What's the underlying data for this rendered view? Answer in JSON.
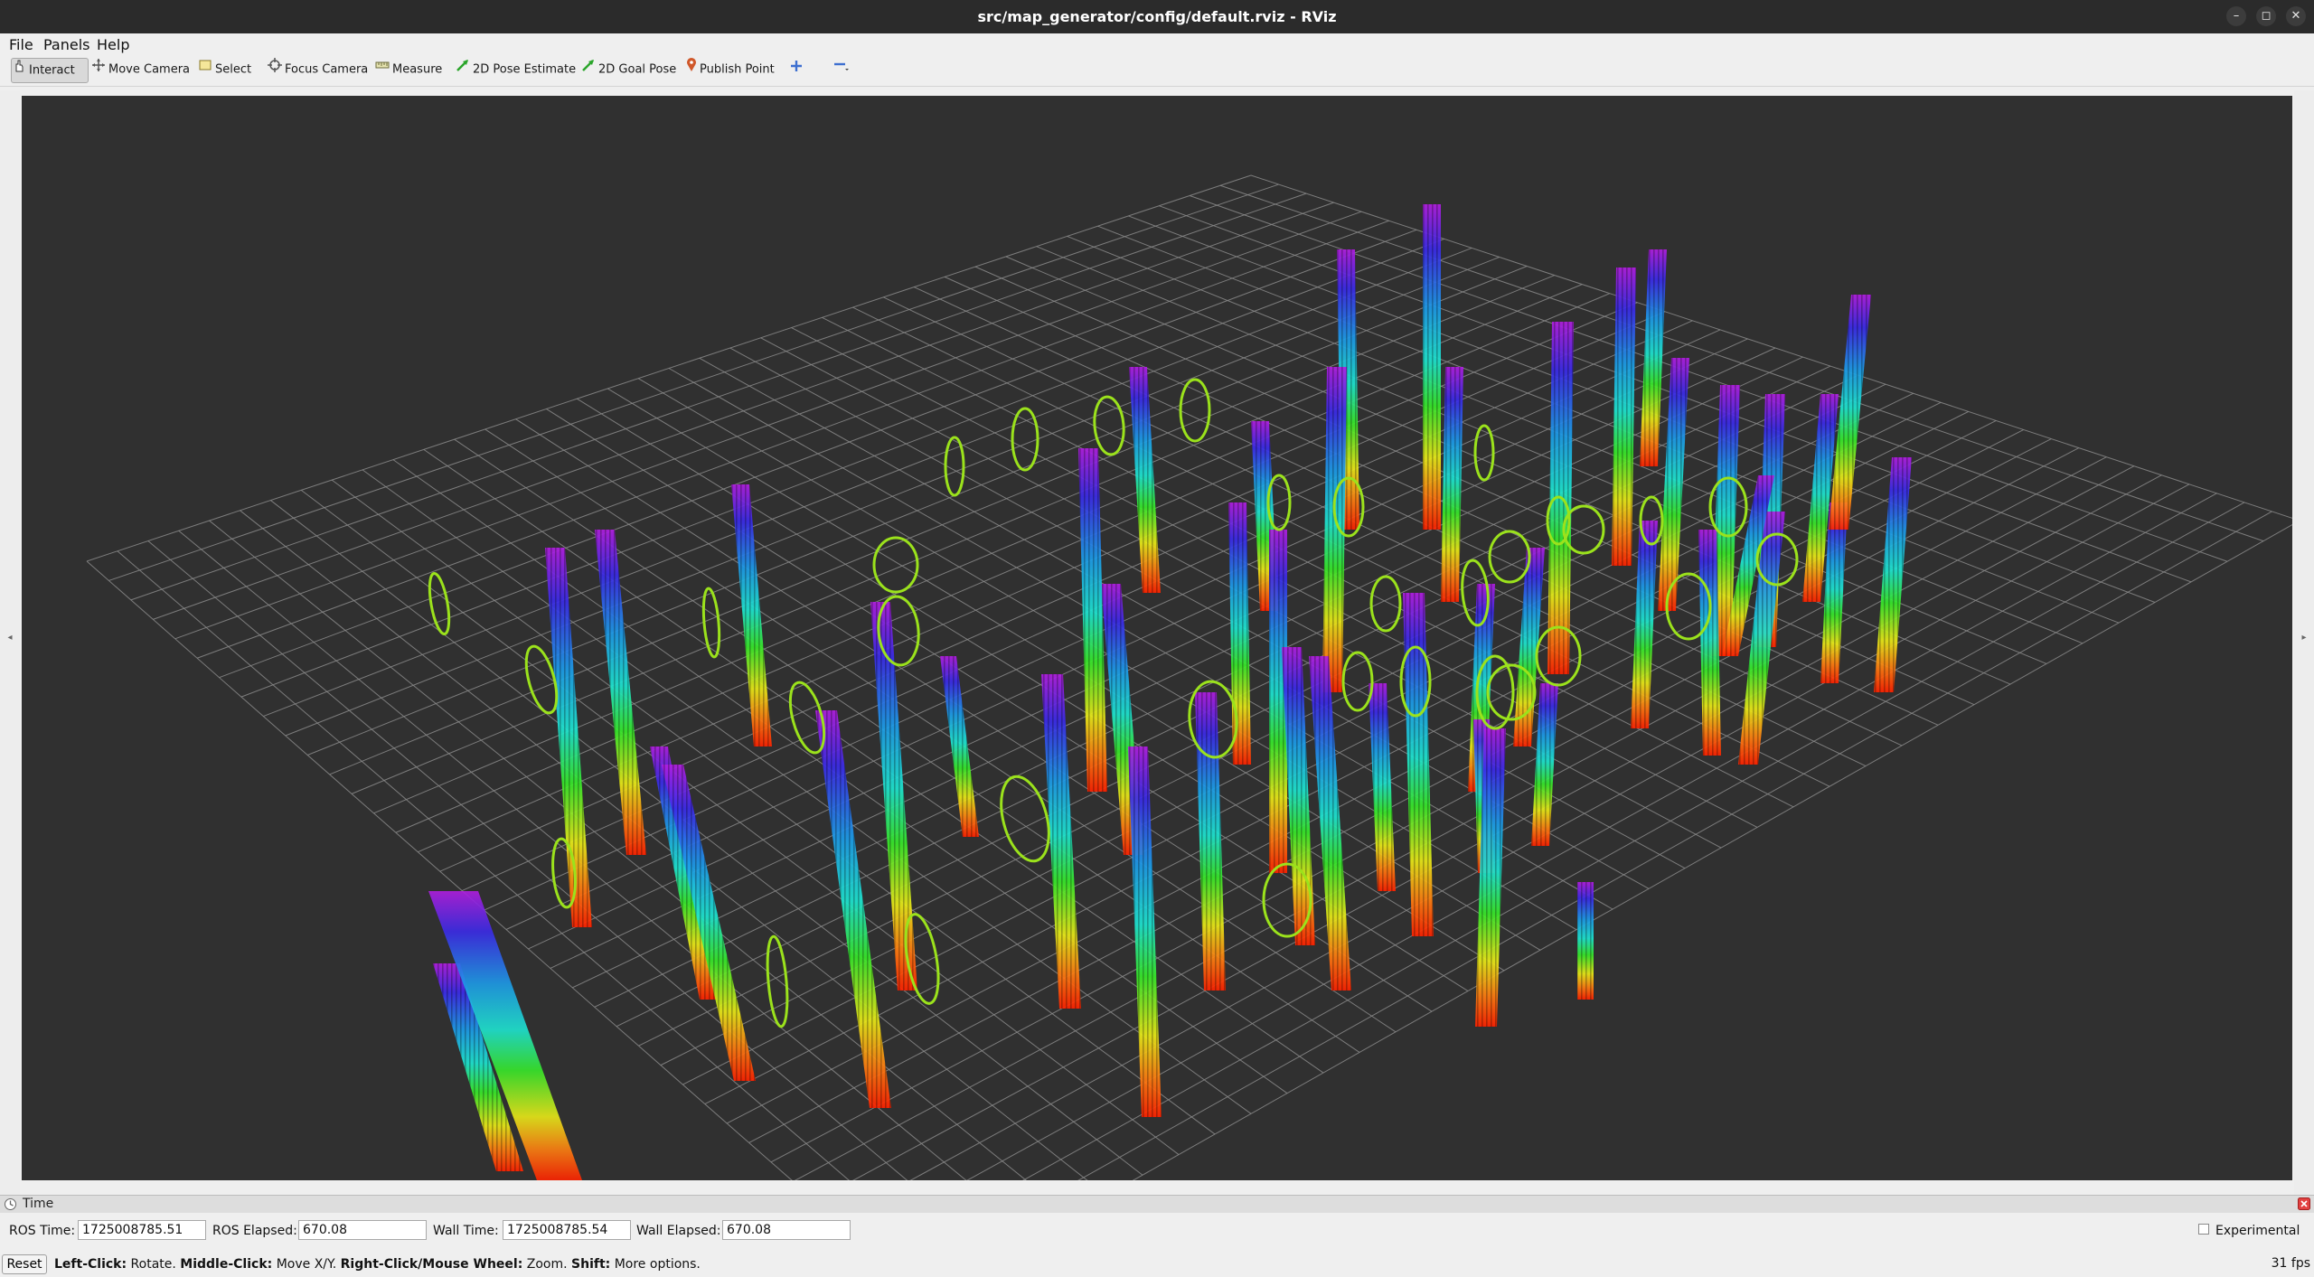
{
  "window": {
    "title": "src/map_generator/config/default.rviz - RViz",
    "minimize_glyph": "–",
    "maximize_glyph": "◻",
    "close_glyph": "✕"
  },
  "menu": {
    "items": [
      {
        "label": "File",
        "hotkey": "F"
      },
      {
        "label": "Panels",
        "hotkey": "P"
      },
      {
        "label": "Help",
        "hotkey": "H"
      }
    ]
  },
  "toolbar": {
    "tools": [
      {
        "label": "Interact",
        "icon": "hand-cursor-icon",
        "active": true
      },
      {
        "label": "Move Camera",
        "icon": "move-camera-icon"
      },
      {
        "label": "Select",
        "icon": "select-box-icon"
      },
      {
        "label": "Focus Camera",
        "icon": "focus-camera-icon"
      },
      {
        "label": "Measure",
        "icon": "ruler-icon"
      },
      {
        "label": "2D Pose Estimate",
        "icon": "green-arrow-icon"
      },
      {
        "label": "2D Goal Pose",
        "icon": "green-arrow-icon"
      },
      {
        "label": "Publish Point",
        "icon": "map-pin-icon"
      }
    ],
    "add_tool_icon": "plus-icon",
    "remove_tool_icon": "minus-icon"
  },
  "time_panel": {
    "title": "Time",
    "ros_time_label": "ROS Time:",
    "ros_time": "1725008785.51",
    "ros_elapsed_label": "ROS Elapsed:",
    "ros_elapsed": "670.08",
    "wall_time_label": "Wall Time:",
    "wall_time": "1725008785.54",
    "wall_elapsed_label": "Wall Elapsed:",
    "wall_elapsed": "670.08",
    "experimental_label": "Experimental",
    "experimental_checked": false
  },
  "status": {
    "reset_label": "Reset",
    "hint_left_click": "Left-Click:",
    "hint_rotate": " Rotate. ",
    "hint_middle_click": "Middle-Click:",
    "hint_move": " Move X/Y. ",
    "hint_right_click": "Right-Click/Mouse Wheel:",
    "hint_zoom": " Zoom. ",
    "hint_shift": "Shift:",
    "hint_more": " More options.",
    "fps": "31 fps"
  },
  "scene": {
    "background_color": "#303030",
    "grid_color": "#8a8a8a",
    "ring_color": "#9be21c"
  }
}
